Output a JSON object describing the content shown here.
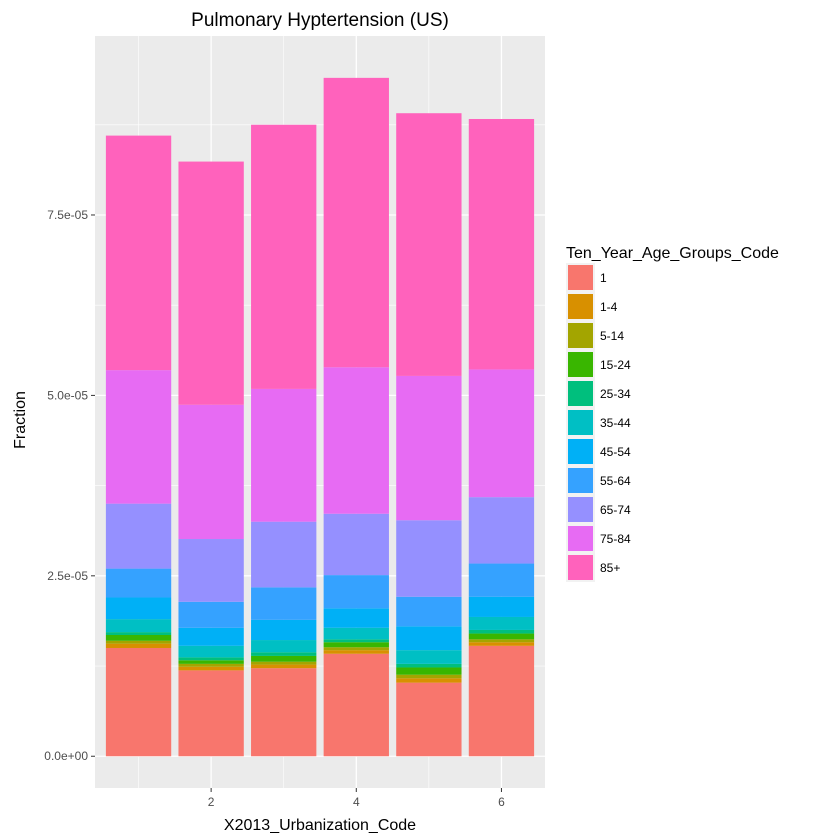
{
  "chart_data": {
    "type": "bar",
    "stacked": true,
    "title": "Pulmonary Hyptertension (US)",
    "xlabel": "X2013_Urbanization_Code",
    "ylabel": "Fraction",
    "categories": [
      1,
      2,
      3,
      4,
      5,
      6
    ],
    "x_ticks": [
      2,
      4,
      6
    ],
    "x_tick_labels": [
      "2",
      "4",
      "6"
    ],
    "y_ticks": [
      0,
      2.5e-05,
      5e-05,
      7.5e-05
    ],
    "y_tick_labels": [
      "0.0e+00",
      "2.5e-05",
      "5.0e-05",
      "7.5e-05"
    ],
    "xlim": [
      0.4,
      6.6
    ],
    "ylim": [
      -4.4e-06,
      9.98e-05
    ],
    "grid": true,
    "legend_position": "right",
    "legend_title": "Ten_Year_Age_Groups_Code",
    "series": [
      {
        "name": "1",
        "color": "#F8766D",
        "values": [
          1.5e-05,
          1.19e-05,
          1.22e-05,
          1.42e-05,
          1.02e-05,
          1.53e-05
        ]
      },
      {
        "name": "1-4",
        "color": "#D89000",
        "values": [
          6e-07,
          5e-07,
          5e-07,
          5e-07,
          6e-07,
          5e-07
        ]
      },
      {
        "name": "5-14",
        "color": "#A3A500",
        "values": [
          4e-07,
          4e-07,
          4e-07,
          4e-07,
          5e-07,
          4e-07
        ]
      },
      {
        "name": "15-24",
        "color": "#39B600",
        "values": [
          8e-07,
          5e-07,
          8e-07,
          7e-07,
          1e-06,
          8e-07
        ]
      },
      {
        "name": "25-34",
        "color": "#00BF7D",
        "values": [
          4e-07,
          4e-07,
          5e-07,
          4e-07,
          5e-07,
          5e-07
        ]
      },
      {
        "name": "35-44",
        "color": "#00BFC4",
        "values": [
          1.8e-06,
          1.6e-06,
          1.7e-06,
          1.6e-06,
          1.9e-06,
          1.8e-06
        ]
      },
      {
        "name": "45-54",
        "color": "#00B0F6",
        "values": [
          3e-06,
          2.5e-06,
          2.8e-06,
          2.7e-06,
          3.3e-06,
          2.8e-06
        ]
      },
      {
        "name": "55-64",
        "color": "#35A2FF",
        "values": [
          4e-06,
          3.6e-06,
          4.5e-06,
          4.6e-06,
          4.1e-06,
          4.6e-06
        ]
      },
      {
        "name": "65-74",
        "color": "#9590FF",
        "values": [
          9e-06,
          8.7e-06,
          9.1e-06,
          8.5e-06,
          1.06e-05,
          9.2e-06
        ]
      },
      {
        "name": "75-84",
        "color": "#E76BF3",
        "values": [
          1.85e-05,
          1.86e-05,
          1.84e-05,
          2.03e-05,
          2e-05,
          1.77e-05
        ]
      },
      {
        "name": "85+",
        "color": "#FF62BC",
        "values": [
          3.25e-05,
          3.37e-05,
          3.66e-05,
          4.01e-05,
          3.64e-05,
          3.47e-05
        ]
      }
    ]
  }
}
